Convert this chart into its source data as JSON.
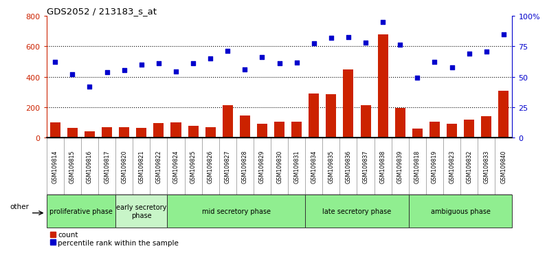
{
  "title": "GDS2052 / 213183_s_at",
  "samples": [
    "GSM109814",
    "GSM109815",
    "GSM109816",
    "GSM109817",
    "GSM109820",
    "GSM109821",
    "GSM109822",
    "GSM109824",
    "GSM109825",
    "GSM109826",
    "GSM109827",
    "GSM109828",
    "GSM109829",
    "GSM109830",
    "GSM109831",
    "GSM109834",
    "GSM109835",
    "GSM109836",
    "GSM109837",
    "GSM109838",
    "GSM109839",
    "GSM109818",
    "GSM109819",
    "GSM109823",
    "GSM109832",
    "GSM109833",
    "GSM109840"
  ],
  "counts": [
    100,
    65,
    40,
    70,
    70,
    65,
    95,
    100,
    80,
    70,
    215,
    145,
    90,
    105,
    105,
    290,
    285,
    450,
    215,
    680,
    195,
    60,
    105,
    90,
    120,
    140,
    310
  ],
  "percentiles_pct": [
    62.5,
    51.9,
    41.9,
    53.8,
    55.6,
    60.0,
    61.3,
    54.4,
    61.3,
    65.0,
    71.3,
    56.3,
    66.3,
    61.3,
    61.9,
    77.5,
    81.9,
    82.5,
    78.1,
    95.0,
    76.3,
    49.4,
    62.5,
    57.5,
    68.8,
    70.6,
    85.0
  ],
  "phases": [
    {
      "name": "proliferative phase",
      "start": 0,
      "end": 4,
      "color": "#90EE90"
    },
    {
      "name": "early secretory\nphase",
      "start": 4,
      "end": 7,
      "color": "#c8f5c8"
    },
    {
      "name": "mid secretory phase",
      "start": 7,
      "end": 15,
      "color": "#90EE90"
    },
    {
      "name": "late secretory phase",
      "start": 15,
      "end": 21,
      "color": "#90EE90"
    },
    {
      "name": "ambiguous phase",
      "start": 21,
      "end": 27,
      "color": "#90EE90"
    }
  ],
  "ylim_left": [
    0,
    800
  ],
  "ylim_right": [
    0,
    100
  ],
  "bar_color": "#CC2200",
  "dot_color": "#0000CC",
  "tick_bg_color": "#cccccc",
  "tick_border_color": "#888888",
  "phase_border_color": "#333333",
  "grid_vals": [
    200,
    400,
    600
  ],
  "yticks_left": [
    0,
    200,
    400,
    600,
    800
  ],
  "yticks_right": [
    0,
    25,
    50,
    75,
    100
  ],
  "ytick_right_labels": [
    "0",
    "25",
    "50",
    "75",
    "100%"
  ]
}
